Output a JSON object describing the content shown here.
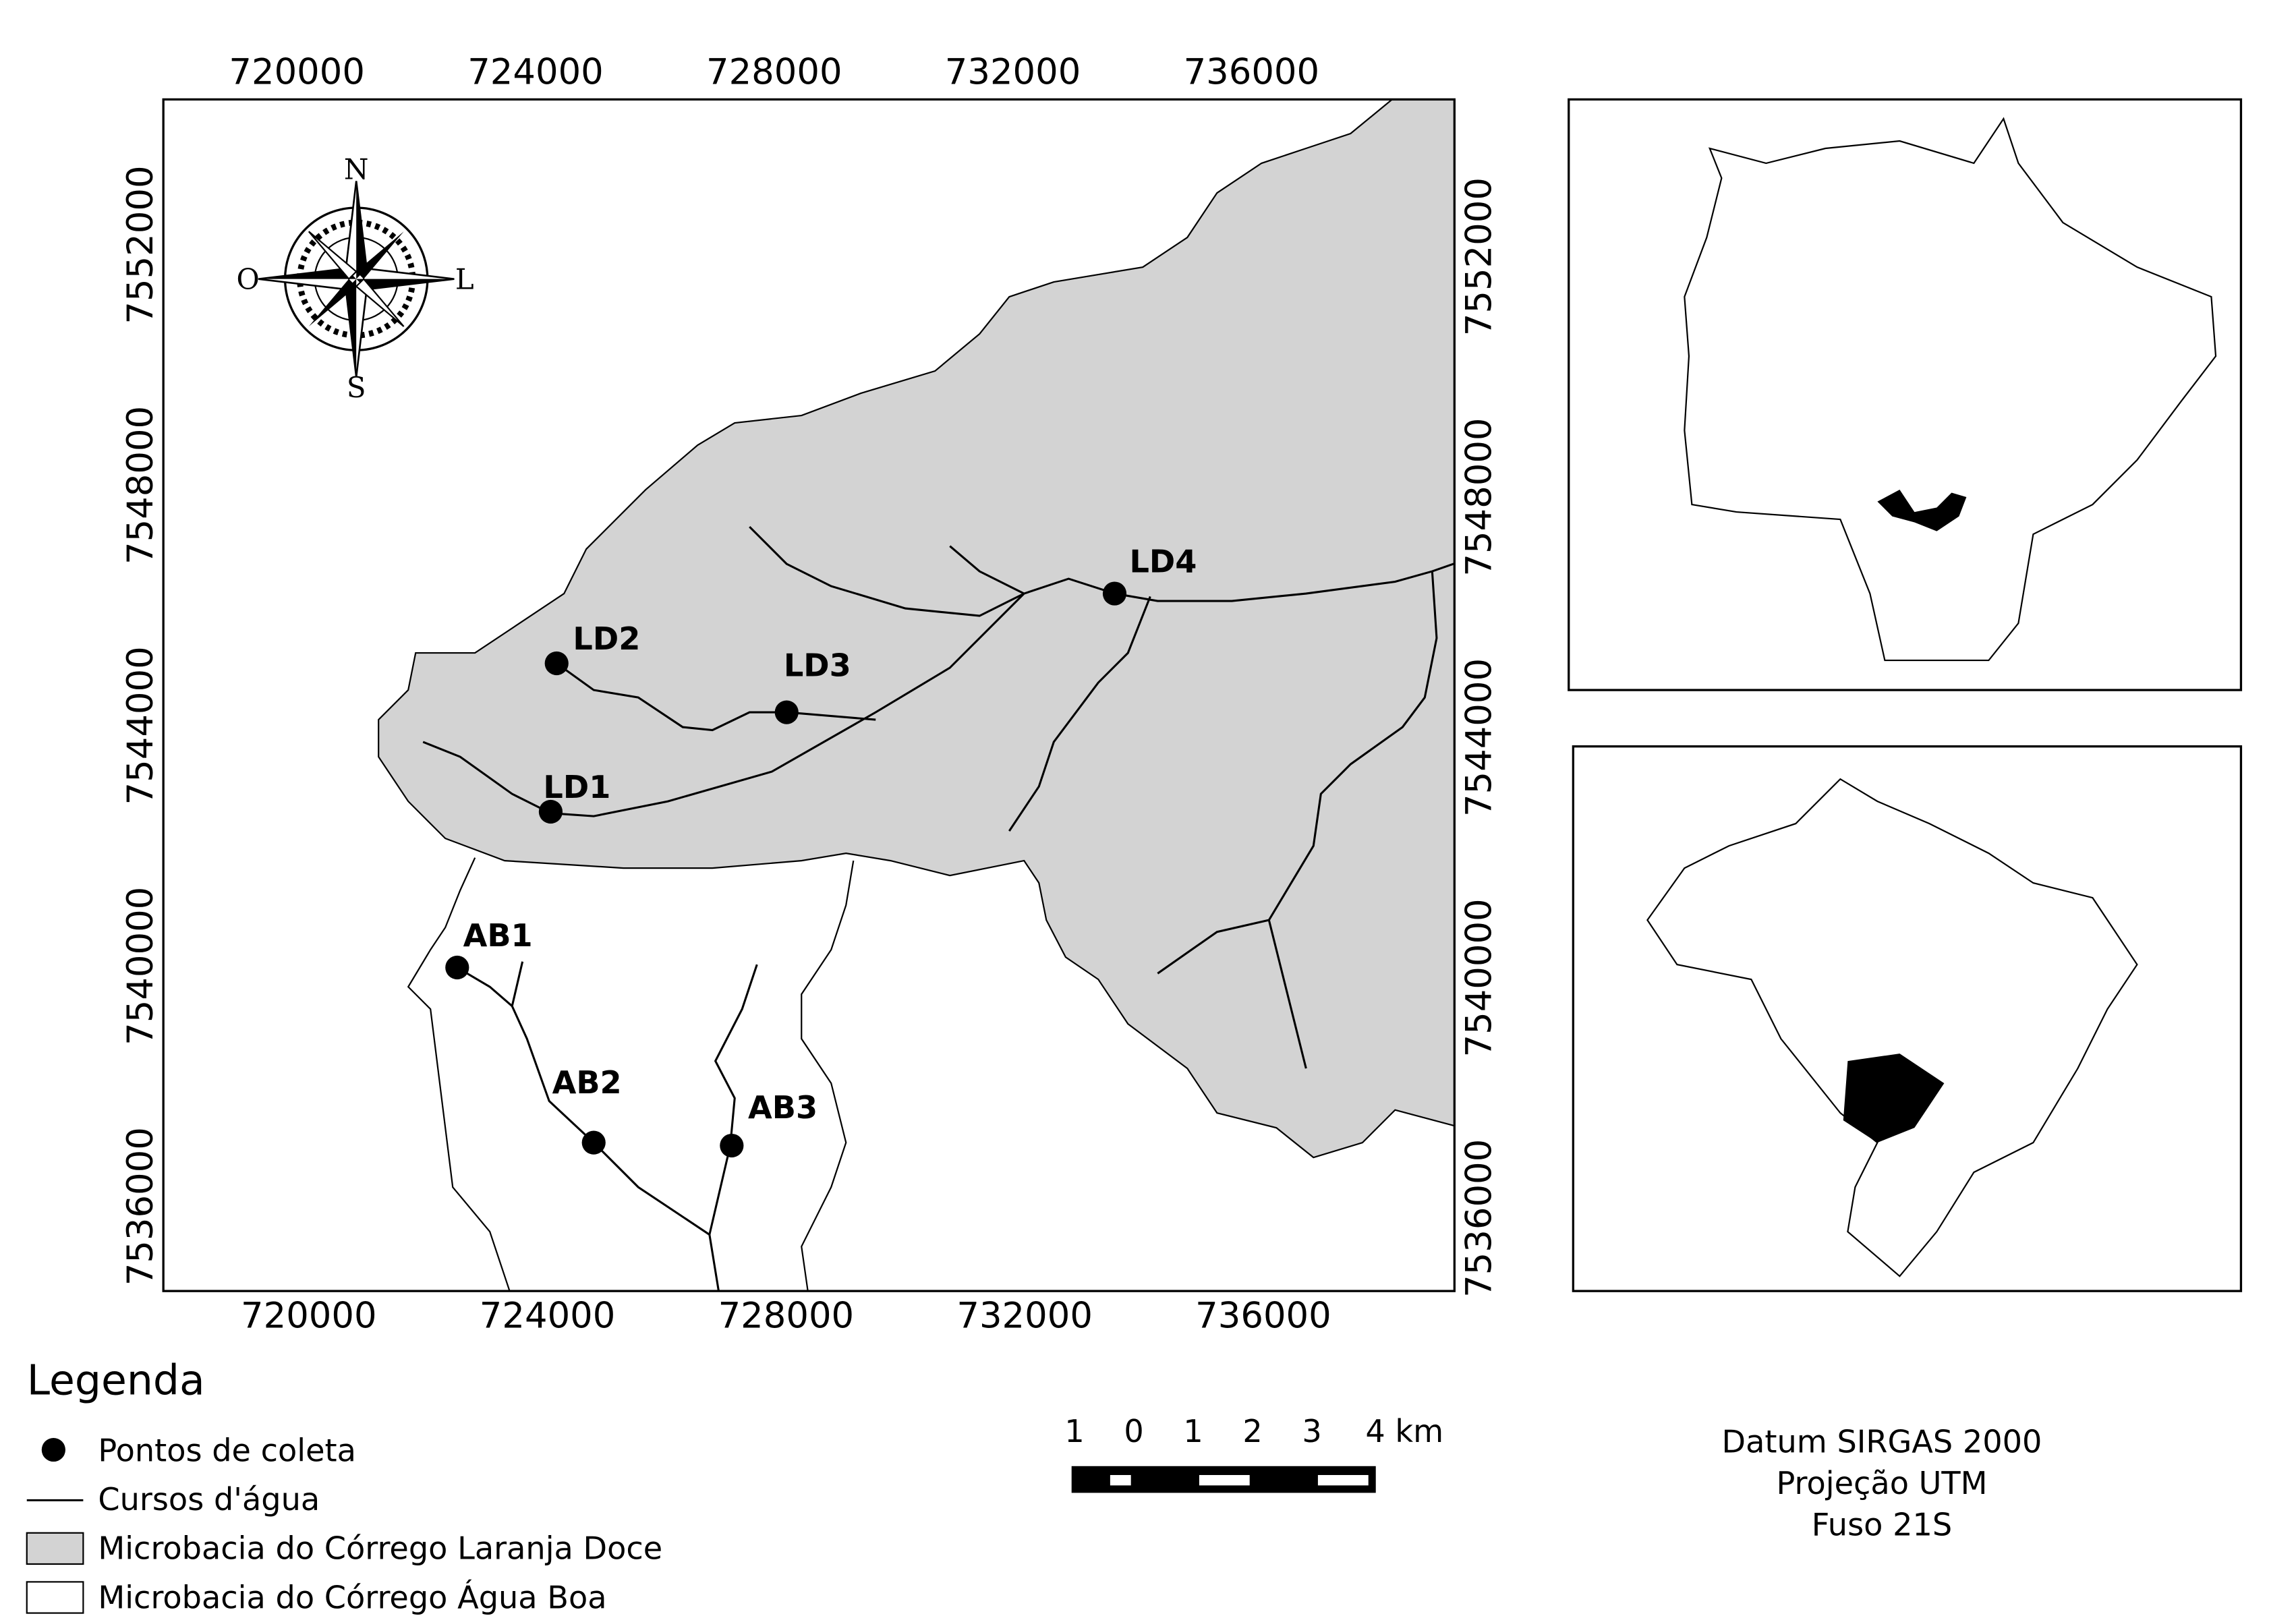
{
  "map": {
    "x_ticks": [
      720000,
      724000,
      728000,
      732000,
      736000
    ],
    "y_ticks": [
      7536000,
      7540000,
      7544000,
      7548000,
      7552000
    ],
    "compass": {
      "north": "N",
      "south": "S",
      "west": "O",
      "east": "L"
    },
    "points": [
      {
        "label": "LD1"
      },
      {
        "label": "LD2"
      },
      {
        "label": "LD3"
      },
      {
        "label": "LD4"
      },
      {
        "label": "AB1"
      },
      {
        "label": "AB2"
      },
      {
        "label": "AB3"
      }
    ],
    "legend": {
      "title": "Legenda",
      "items": [
        "Pontos de coleta",
        "Cursos d'água",
        "Microbacia do Córrego Laranja Doce",
        "Microbacia do Córrego Água Boa"
      ]
    },
    "scale_bar": {
      "labels": [
        "1",
        "0",
        "1",
        "2",
        "3",
        "4 km"
      ]
    },
    "datum": [
      "Datum SIRGAS 2000",
      "Projeção UTM",
      "Fuso 21S"
    ]
  }
}
